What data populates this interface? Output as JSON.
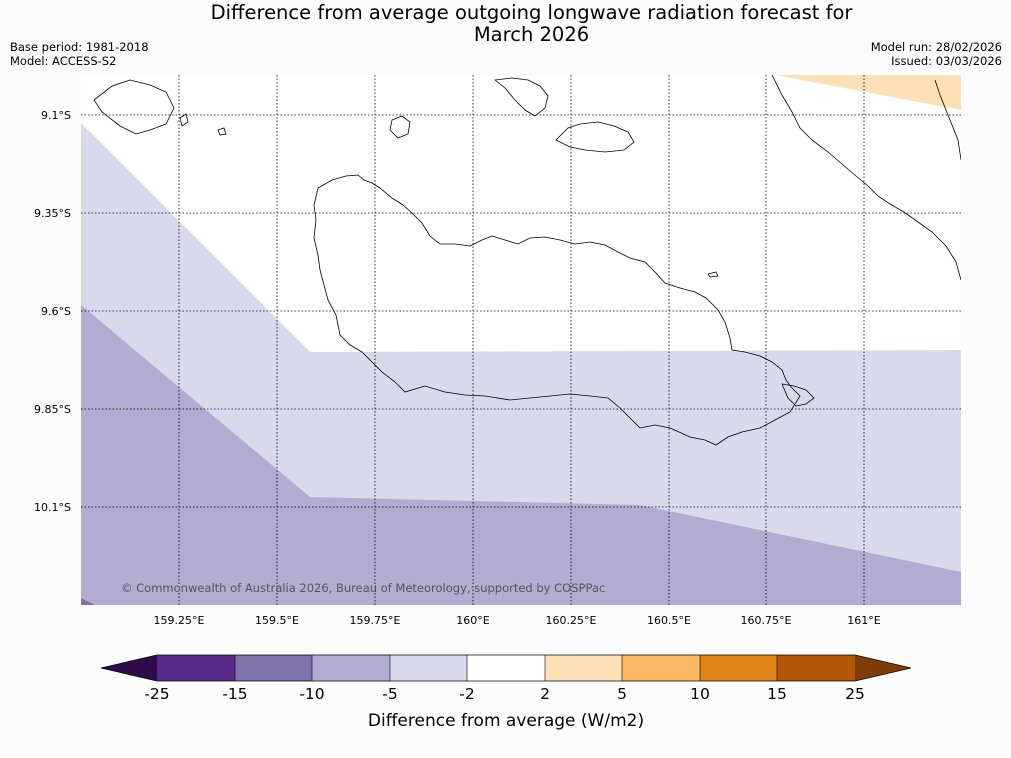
{
  "title": {
    "line1": "Difference from average outgoing longwave radiation forecast for",
    "line2": "March 2026"
  },
  "meta": {
    "base_period": "Base period: 1981-2018",
    "model": "Model: ACCESS-S2",
    "model_run": "Model run: 28/02/2026",
    "issued": "Issued: 03/03/2026"
  },
  "map": {
    "lat_labels": [
      "9.1°S",
      "9.35°S",
      "9.6°S",
      "9.85°S",
      "10.1°S"
    ],
    "lon_labels": [
      "159.25°E",
      "159.5°E",
      "159.75°E",
      "160°E",
      "160.25°E",
      "160.5°E",
      "160.75°E",
      "161°E"
    ],
    "copyright": "© Commonwealth of Australia 2026, Bureau of Meteorology, supported by COSPPac"
  },
  "colorbar": {
    "label": "Difference from average (W/m2)",
    "ticks": [
      "-25",
      "-15",
      "-10",
      "-5",
      "-2",
      "2",
      "5",
      "10",
      "15",
      "25"
    ],
    "colors": {
      "lt_-25": "#2e0c4a",
      "-25_-15": "#5a2a8a",
      "-15_-10": "#8073ac",
      "-10_-5": "#b2abd2",
      "-5_-2": "#d8daeb",
      "-2_2": "#ffffff",
      "2_5": "#fee0b6",
      "5_10": "#fdb863",
      "10_15": "#e08214",
      "15_25": "#b35806",
      "gt_25": "#7f3b08"
    }
  }
}
